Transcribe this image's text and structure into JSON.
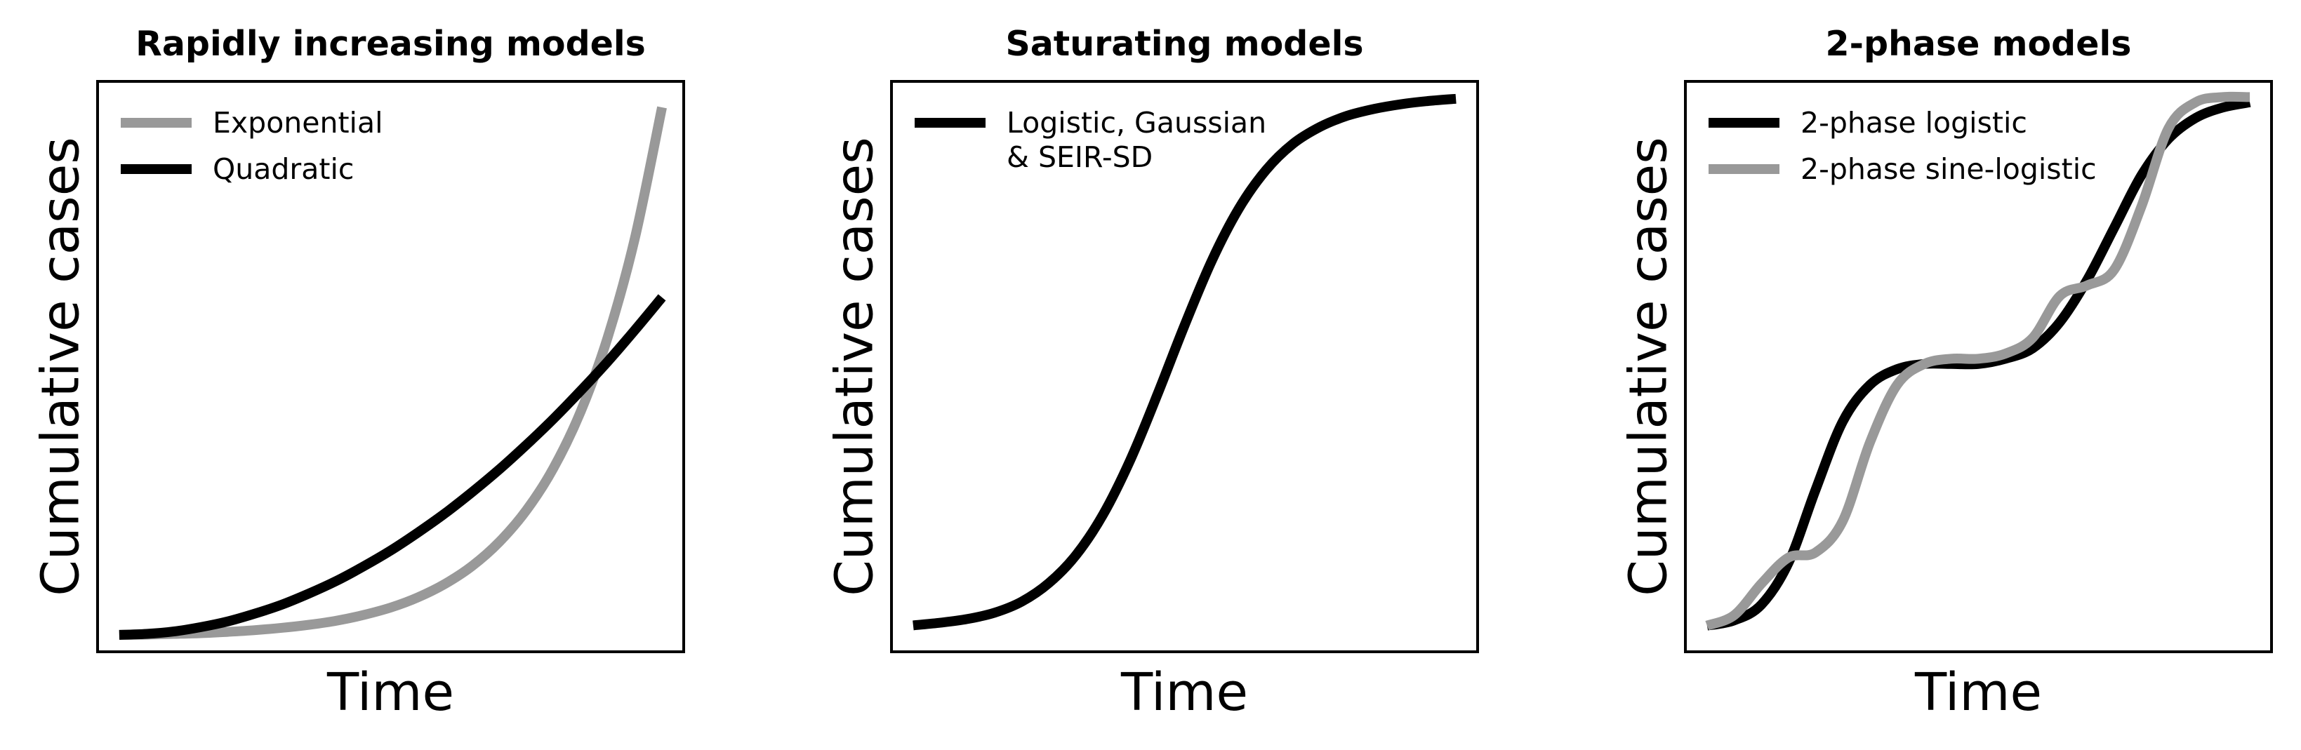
{
  "chart_data": [
    {
      "type": "line",
      "title": "Rapidly increasing models",
      "xlabel": "Time",
      "ylabel": "Cumulative cases",
      "xticks": "none",
      "yticks": "none",
      "grid": false,
      "legend_position": "top-left",
      "x": [
        0,
        0.05,
        0.1,
        0.15,
        0.2,
        0.25,
        0.3,
        0.35,
        0.4,
        0.45,
        0.5,
        0.55,
        0.6,
        0.65,
        0.7,
        0.75,
        0.8,
        0.85,
        0.9,
        0.95,
        1
      ],
      "series": [
        {
          "name": "Exponential",
          "color": "#999999",
          "values": [
            0,
            0.001,
            0.003,
            0.005,
            0.009,
            0.014,
            0.021,
            0.03,
            0.042,
            0.059,
            0.081,
            0.111,
            0.151,
            0.204,
            0.275,
            0.369,
            0.494,
            0.661,
            0.882,
            1.175,
            1.563
          ]
        },
        {
          "name": "Quadratic",
          "color": "#000000",
          "values": [
            0,
            0.003,
            0.01,
            0.023,
            0.04,
            0.063,
            0.09,
            0.123,
            0.16,
            0.203,
            0.25,
            0.303,
            0.36,
            0.423,
            0.49,
            0.563,
            0.64,
            0.723,
            0.81,
            0.903,
            1.0
          ]
        }
      ]
    },
    {
      "type": "line",
      "title": "Saturating models",
      "xlabel": "Time",
      "ylabel": "Cumulative cases",
      "xticks": "none",
      "yticks": "none",
      "grid": false,
      "legend_position": "top-left",
      "x": [
        0,
        0.05,
        0.1,
        0.15,
        0.2,
        0.25,
        0.3,
        0.35,
        0.4,
        0.45,
        0.5,
        0.55,
        0.6,
        0.65,
        0.7,
        0.75,
        0.8,
        0.85,
        0.9,
        0.95,
        1
      ],
      "series": [
        {
          "name": "Logistic, Gaussian\n& SEIR-SD",
          "color": "#000000",
          "values": [
            0,
            0.005,
            0.012,
            0.024,
            0.045,
            0.08,
            0.133,
            0.21,
            0.313,
            0.437,
            0.568,
            0.69,
            0.789,
            0.862,
            0.912,
            0.944,
            0.965,
            0.978,
            0.987,
            0.993,
            0.997
          ]
        }
      ]
    },
    {
      "type": "line",
      "title": "2-phase models",
      "xlabel": "Time",
      "ylabel": "Cumulative cases",
      "xticks": "none",
      "yticks": "none",
      "grid": false,
      "legend_position": "top-left",
      "x": [
        0,
        0.05,
        0.1,
        0.15,
        0.2,
        0.25,
        0.3,
        0.35,
        0.4,
        0.45,
        0.5,
        0.55,
        0.6,
        0.65,
        0.7,
        0.75,
        0.8,
        0.85,
        0.9,
        0.95,
        1
      ],
      "series": [
        {
          "name": "2-phase logistic",
          "color": "#000000",
          "values": [
            0,
            0.01,
            0.04,
            0.12,
            0.26,
            0.39,
            0.46,
            0.49,
            0.5,
            0.5,
            0.5,
            0.51,
            0.53,
            0.58,
            0.66,
            0.76,
            0.86,
            0.93,
            0.97,
            0.99,
            1.0
          ]
        },
        {
          "name": "2-phase sine-logistic",
          "color": "#999999",
          "values": [
            0,
            0.02,
            0.08,
            0.13,
            0.14,
            0.2,
            0.35,
            0.46,
            0.5,
            0.51,
            0.51,
            0.52,
            0.55,
            0.63,
            0.65,
            0.68,
            0.8,
            0.95,
            1.0,
            1.01,
            1.01
          ]
        }
      ]
    }
  ]
}
